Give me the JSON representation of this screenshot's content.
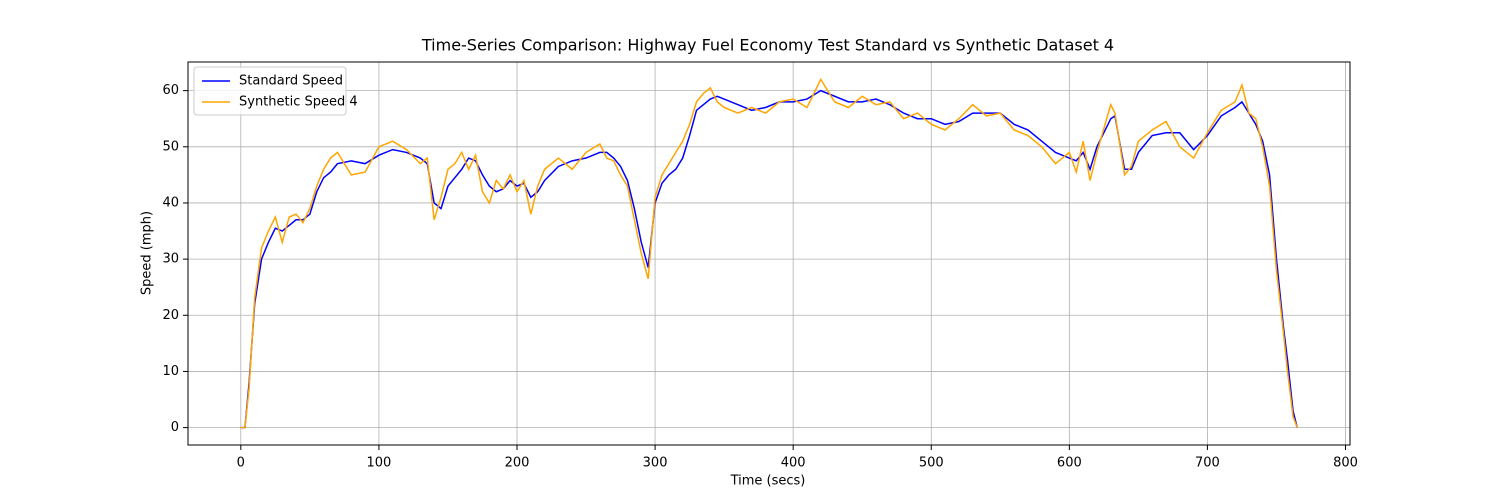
{
  "chart_data": {
    "type": "line",
    "title": "Time-Series Comparison: Highway Fuel Economy Test Standard vs Synthetic Dataset 4",
    "xlabel": "Time (secs)",
    "ylabel": "Speed (mph)",
    "x": [
      0,
      3,
      6,
      10,
      15,
      20,
      25,
      30,
      35,
      40,
      45,
      50,
      55,
      60,
      65,
      70,
      80,
      90,
      100,
      110,
      120,
      130,
      135,
      140,
      145,
      150,
      155,
      160,
      165,
      170,
      175,
      180,
      185,
      190,
      195,
      200,
      205,
      210,
      215,
      220,
      230,
      240,
      250,
      260,
      265,
      270,
      275,
      280,
      285,
      290,
      295,
      300,
      305,
      310,
      315,
      320,
      325,
      330,
      335,
      340,
      345,
      350,
      360,
      370,
      380,
      390,
      400,
      410,
      420,
      430,
      440,
      450,
      460,
      470,
      480,
      490,
      500,
      510,
      520,
      530,
      540,
      550,
      560,
      570,
      580,
      590,
      600,
      605,
      610,
      615,
      620,
      630,
      633,
      640,
      645,
      650,
      660,
      670,
      680,
      690,
      700,
      710,
      720,
      725,
      730,
      735,
      740,
      745,
      750,
      755,
      758,
      762,
      765
    ],
    "series": [
      {
        "name": "Standard Speed",
        "color": "#0000ff",
        "values": [
          0,
          0,
          8,
          22,
          30,
          33,
          35.5,
          35,
          36,
          37,
          37,
          38,
          42,
          44.5,
          45.5,
          47,
          47.5,
          47,
          48.5,
          49.5,
          49,
          48,
          47,
          40,
          39,
          43,
          44.5,
          46,
          48,
          47.5,
          45,
          43,
          42,
          42.5,
          44,
          43,
          43.5,
          41,
          42,
          44,
          46.5,
          47.5,
          48,
          49,
          49,
          48,
          46.5,
          44,
          39,
          33,
          28.5,
          40,
          43.5,
          45,
          46,
          48,
          52,
          56.5,
          57.5,
          58.5,
          59,
          58.5,
          57.5,
          56.5,
          57,
          58,
          58,
          58.5,
          60,
          59,
          58,
          58,
          58.5,
          57.5,
          56,
          55,
          55,
          54,
          54.5,
          56,
          56,
          56,
          54,
          53,
          51,
          49,
          48,
          47.5,
          49,
          46,
          50,
          55,
          55.5,
          46,
          46,
          49,
          52,
          52.5,
          52.5,
          49.5,
          52,
          55.5,
          57,
          58,
          56,
          54,
          51,
          45,
          30,
          18,
          12,
          3,
          0
        ]
      },
      {
        "name": "Synthetic Speed 4",
        "color": "#ffa500",
        "values": [
          0,
          0,
          7,
          23,
          32,
          35,
          37.5,
          33,
          37.5,
          38,
          36.5,
          39,
          43,
          46,
          48,
          49,
          45,
          45.5,
          50,
          51,
          49.5,
          47,
          48,
          37,
          41,
          46,
          47,
          49,
          46,
          48.5,
          42,
          40,
          44,
          42.5,
          45,
          42,
          44,
          38,
          43,
          46,
          48,
          46,
          49,
          50.5,
          48,
          47.5,
          45,
          43,
          37,
          31,
          26.5,
          41,
          45,
          47,
          49,
          51,
          54,
          58,
          59.5,
          60.5,
          58,
          57,
          56,
          57,
          56,
          58,
          58.5,
          57,
          62,
          58,
          57,
          59,
          57.5,
          58,
          55,
          56,
          54,
          53,
          55,
          57.5,
          55.5,
          56,
          53,
          52,
          50,
          47,
          49,
          45.5,
          51,
          44,
          49,
          57.5,
          56,
          45,
          46.5,
          51,
          53,
          54.5,
          50,
          48,
          52.5,
          56.5,
          58,
          61,
          56,
          55,
          50,
          43,
          28,
          17,
          10,
          2,
          0
        ]
      }
    ],
    "xlim": [
      -38.25,
      803.25
    ],
    "ylim": [
      -3.1,
      65.1
    ],
    "xticks": [
      0,
      100,
      200,
      300,
      400,
      500,
      600,
      700,
      800
    ],
    "yticks": [
      0,
      10,
      20,
      30,
      40,
      50,
      60
    ],
    "grid": true,
    "legend": "upper left"
  }
}
